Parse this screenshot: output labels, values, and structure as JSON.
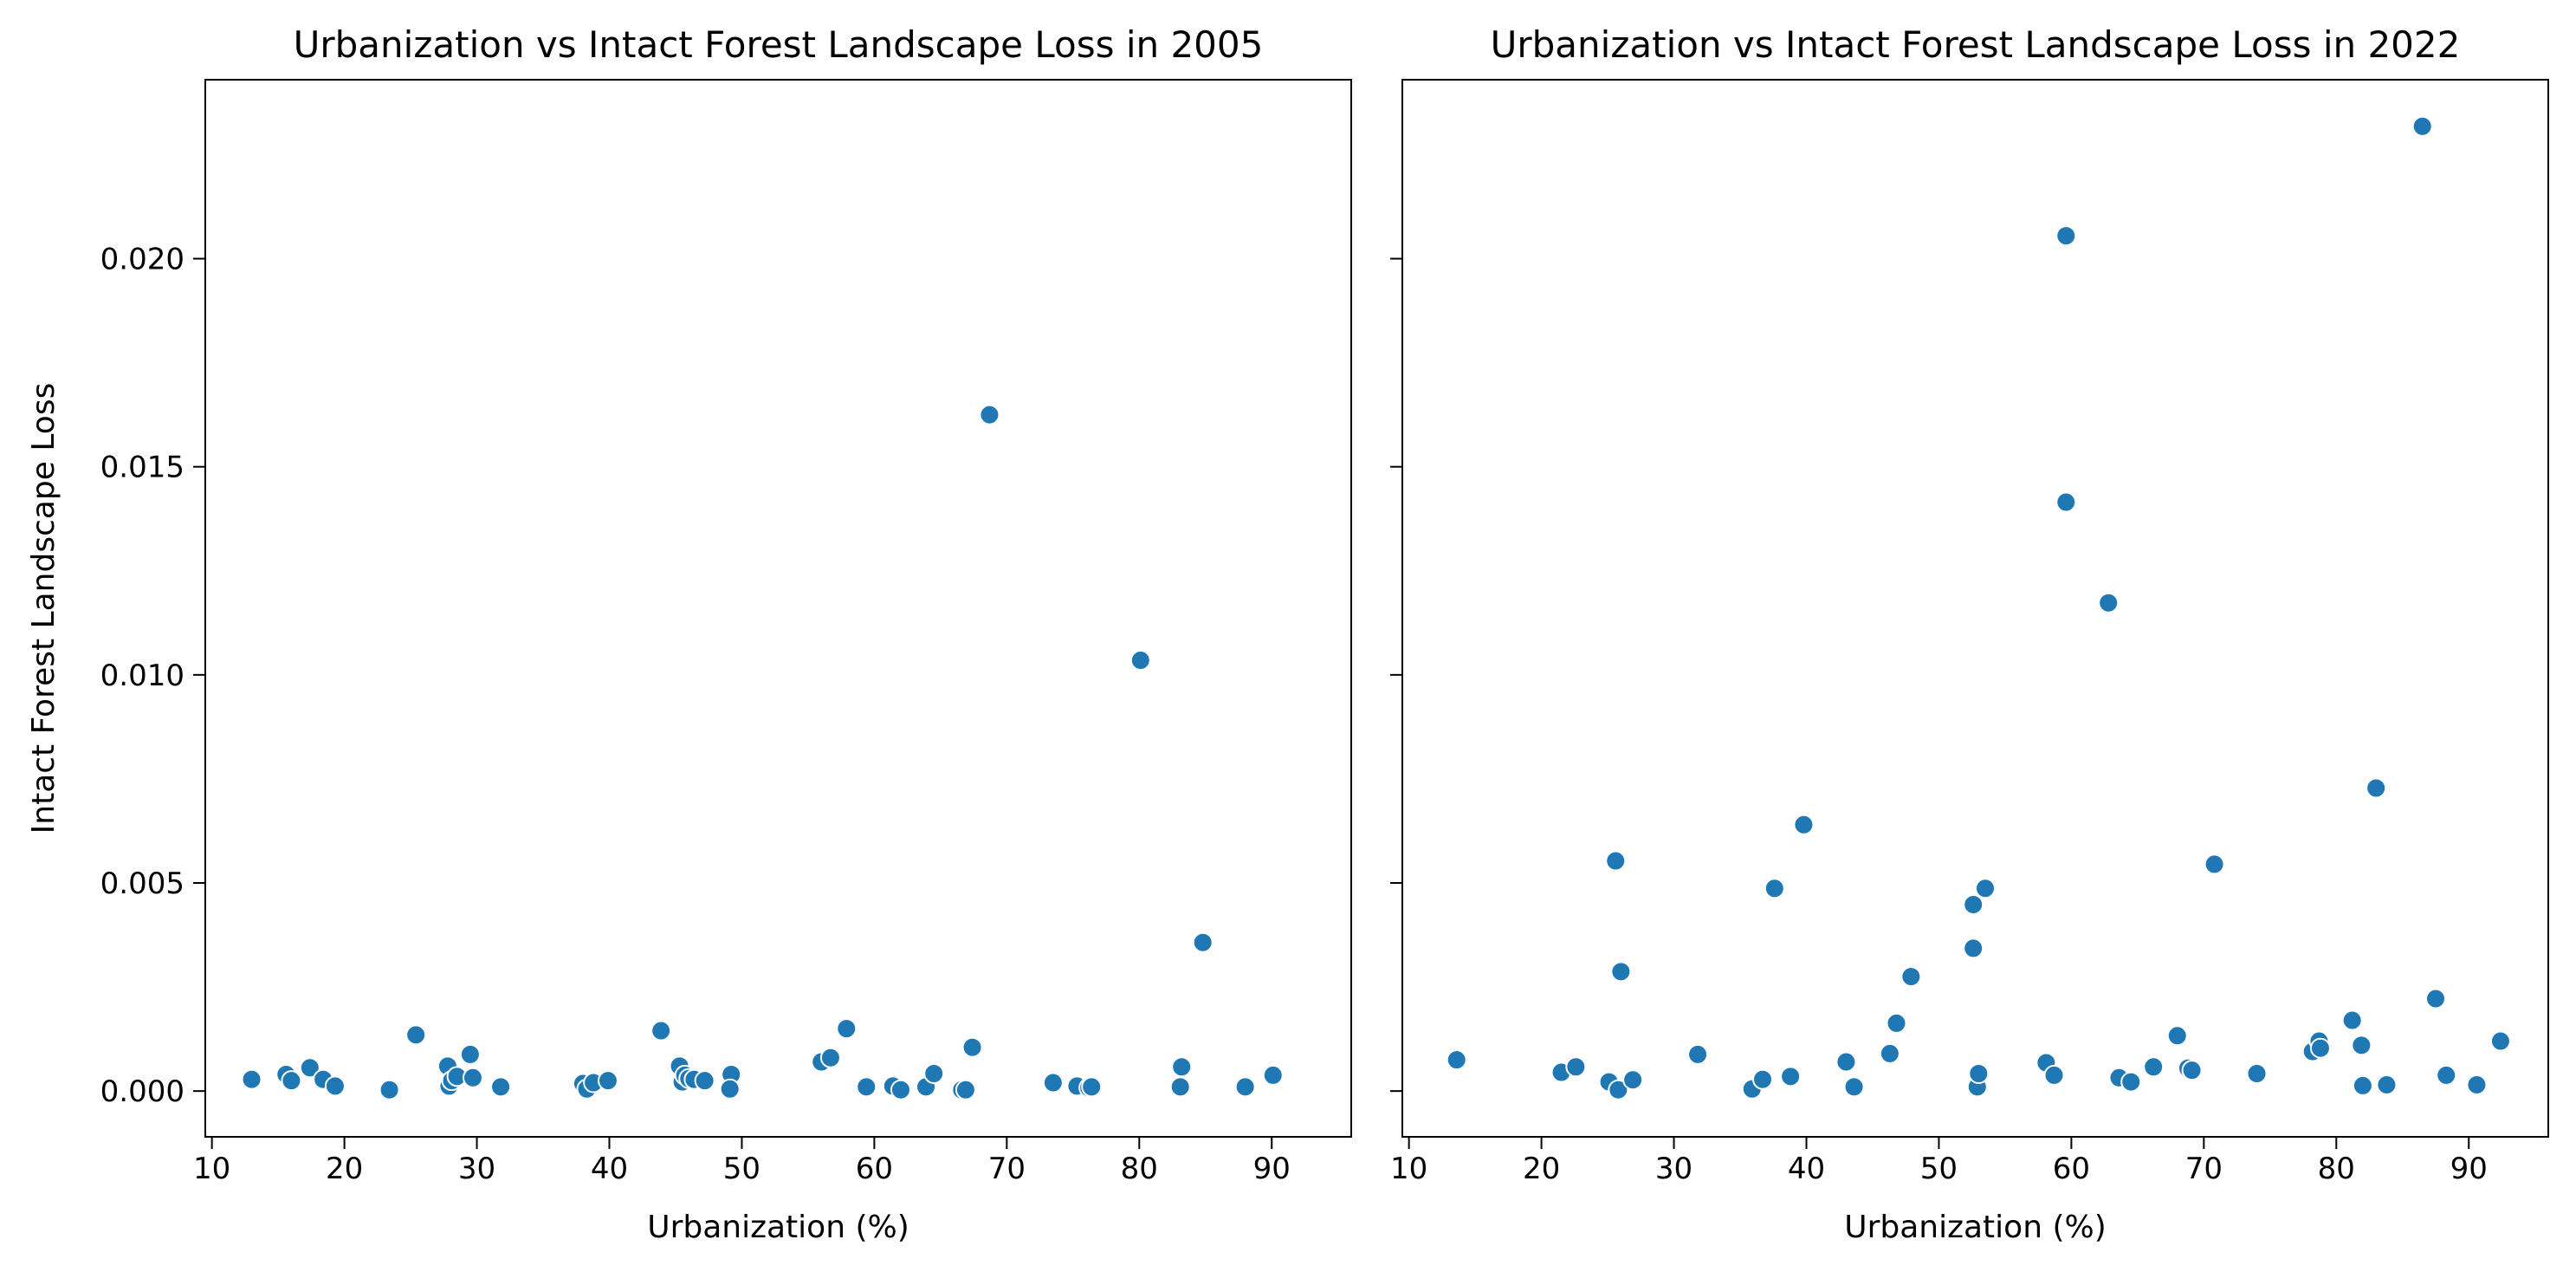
{
  "chart_data": [
    {
      "type": "scatter",
      "title": "Urbanization vs Intact Forest Landscape Loss in 2005",
      "xlabel": "Urbanization (%)",
      "ylabel": "Intact Forest Landscape Loss",
      "xlim": [
        9.5,
        96
      ],
      "ylim": [
        -0.0011,
        0.0243
      ],
      "xticks": [
        10,
        20,
        30,
        40,
        50,
        60,
        70,
        80,
        90
      ],
      "xtick_labels": [
        "10",
        "20",
        "30",
        "40",
        "50",
        "60",
        "70",
        "80",
        "90"
      ],
      "yticks": [
        0.0,
        0.005,
        0.01,
        0.015,
        0.02
      ],
      "ytick_labels": [
        "0.000",
        "0.005",
        "0.010",
        "0.015",
        "0.020"
      ],
      "marker_color": "#1f77b4",
      "grid": false,
      "points": [
        {
          "x": 13.0,
          "y": 0.00028
        },
        {
          "x": 15.6,
          "y": 0.0004
        },
        {
          "x": 16.0,
          "y": 0.00025
        },
        {
          "x": 17.4,
          "y": 0.00056
        },
        {
          "x": 18.4,
          "y": 0.00028
        },
        {
          "x": 19.3,
          "y": 0.00012
        },
        {
          "x": 23.4,
          "y": 3e-05
        },
        {
          "x": 25.4,
          "y": 0.00135
        },
        {
          "x": 27.8,
          "y": 0.0006
        },
        {
          "x": 27.9,
          "y": 0.00012
        },
        {
          "x": 28.1,
          "y": 0.00025
        },
        {
          "x": 28.5,
          "y": 0.00035
        },
        {
          "x": 29.5,
          "y": 0.00088
        },
        {
          "x": 29.7,
          "y": 0.00032
        },
        {
          "x": 31.8,
          "y": 0.0001
        },
        {
          "x": 38.0,
          "y": 0.00018
        },
        {
          "x": 38.3,
          "y": 5e-05
        },
        {
          "x": 38.8,
          "y": 0.0002
        },
        {
          "x": 39.9,
          "y": 0.00025
        },
        {
          "x": 43.9,
          "y": 0.00145
        },
        {
          "x": 45.3,
          "y": 0.0006
        },
        {
          "x": 45.5,
          "y": 0.00022
        },
        {
          "x": 45.7,
          "y": 0.00038
        },
        {
          "x": 46.0,
          "y": 0.0003
        },
        {
          "x": 46.4,
          "y": 0.00028
        },
        {
          "x": 47.2,
          "y": 0.00025
        },
        {
          "x": 49.2,
          "y": 0.0004
        },
        {
          "x": 49.1,
          "y": 5e-05
        },
        {
          "x": 56.0,
          "y": 0.0007
        },
        {
          "x": 56.7,
          "y": 0.0008
        },
        {
          "x": 57.9,
          "y": 0.0015
        },
        {
          "x": 59.4,
          "y": 0.0001
        },
        {
          "x": 61.4,
          "y": 0.00012
        },
        {
          "x": 62.0,
          "y": 3e-05
        },
        {
          "x": 63.9,
          "y": 0.0001
        },
        {
          "x": 64.5,
          "y": 0.00042
        },
        {
          "x": 66.6,
          "y": 3e-05
        },
        {
          "x": 66.9,
          "y": 3e-05
        },
        {
          "x": 67.4,
          "y": 0.00105
        },
        {
          "x": 68.7,
          "y": 0.01625
        },
        {
          "x": 73.5,
          "y": 0.0002
        },
        {
          "x": 75.3,
          "y": 0.00012
        },
        {
          "x": 76.2,
          "y": 8e-05
        },
        {
          "x": 76.4,
          "y": 0.0001
        },
        {
          "x": 80.1,
          "y": 0.01035
        },
        {
          "x": 83.2,
          "y": 0.00058
        },
        {
          "x": 83.1,
          "y": 0.0001
        },
        {
          "x": 84.8,
          "y": 0.00357
        },
        {
          "x": 88.0,
          "y": 0.0001
        },
        {
          "x": 90.1,
          "y": 0.00038
        }
      ]
    },
    {
      "type": "scatter",
      "title": "Urbanization vs Intact Forest Landscape Loss in 2022",
      "xlabel": "Urbanization (%)",
      "xlim": [
        9.5,
        96
      ],
      "ylim": [
        -0.0011,
        0.0243
      ],
      "xticks": [
        10,
        20,
        30,
        40,
        50,
        60,
        70,
        80,
        90
      ],
      "xtick_labels": [
        "10",
        "20",
        "30",
        "40",
        "50",
        "60",
        "70",
        "80",
        "90"
      ],
      "yticks": [
        0.0,
        0.005,
        0.01,
        0.015,
        0.02
      ],
      "marker_color": "#1f77b4",
      "grid": false,
      "points": [
        {
          "x": 13.6,
          "y": 0.00075
        },
        {
          "x": 21.5,
          "y": 0.00045
        },
        {
          "x": 22.6,
          "y": 0.00058
        },
        {
          "x": 25.1,
          "y": 0.00022
        },
        {
          "x": 25.6,
          "y": 0.00553
        },
        {
          "x": 25.8,
          "y": 3e-05
        },
        {
          "x": 26.0,
          "y": 0.00287
        },
        {
          "x": 26.9,
          "y": 0.00027
        },
        {
          "x": 31.8,
          "y": 0.00088
        },
        {
          "x": 35.9,
          "y": 5e-05
        },
        {
          "x": 36.7,
          "y": 0.00028
        },
        {
          "x": 37.6,
          "y": 0.00487
        },
        {
          "x": 38.8,
          "y": 0.00035
        },
        {
          "x": 39.8,
          "y": 0.0064
        },
        {
          "x": 43.0,
          "y": 0.0007
        },
        {
          "x": 43.6,
          "y": 0.0001
        },
        {
          "x": 46.3,
          "y": 0.0009
        },
        {
          "x": 46.8,
          "y": 0.00163
        },
        {
          "x": 47.9,
          "y": 0.00275
        },
        {
          "x": 52.6,
          "y": 0.00448
        },
        {
          "x": 52.6,
          "y": 0.00343
        },
        {
          "x": 52.9,
          "y": 0.0001
        },
        {
          "x": 53.0,
          "y": 0.00042
        },
        {
          "x": 53.5,
          "y": 0.00487
        },
        {
          "x": 58.1,
          "y": 0.00068
        },
        {
          "x": 58.7,
          "y": 0.00038
        },
        {
          "x": 59.6,
          "y": 0.02055
        },
        {
          "x": 59.6,
          "y": 0.01415
        },
        {
          "x": 62.8,
          "y": 0.01173
        },
        {
          "x": 63.6,
          "y": 0.00032
        },
        {
          "x": 64.5,
          "y": 0.00022
        },
        {
          "x": 66.2,
          "y": 0.00058
        },
        {
          "x": 68.0,
          "y": 0.00133
        },
        {
          "x": 68.8,
          "y": 0.00055
        },
        {
          "x": 69.1,
          "y": 0.0005
        },
        {
          "x": 70.8,
          "y": 0.00545
        },
        {
          "x": 74.0,
          "y": 0.00042
        },
        {
          "x": 78.2,
          "y": 0.00095
        },
        {
          "x": 78.7,
          "y": 0.0012
        },
        {
          "x": 78.8,
          "y": 0.00103
        },
        {
          "x": 81.2,
          "y": 0.0017
        },
        {
          "x": 81.9,
          "y": 0.0011
        },
        {
          "x": 82.0,
          "y": 0.00013
        },
        {
          "x": 83.0,
          "y": 0.00728
        },
        {
          "x": 83.8,
          "y": 0.00015
        },
        {
          "x": 86.5,
          "y": 0.02318
        },
        {
          "x": 87.5,
          "y": 0.00222
        },
        {
          "x": 88.3,
          "y": 0.00038
        },
        {
          "x": 90.6,
          "y": 0.00015
        },
        {
          "x": 92.4,
          "y": 0.0012
        }
      ]
    }
  ]
}
